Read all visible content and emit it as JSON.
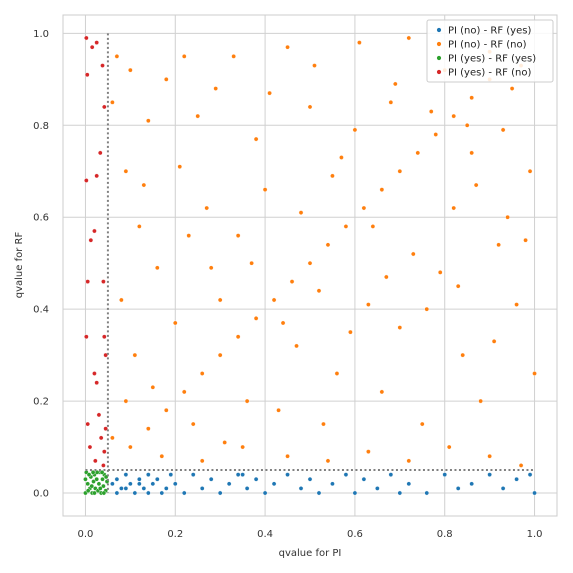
{
  "chart_data": {
    "type": "scatter",
    "title": "",
    "xlabel": "qvalue for PI",
    "ylabel": "qvalue for RF",
    "xlim": [
      -0.05,
      1.05
    ],
    "ylim": [
      -0.05,
      1.04
    ],
    "xticks": [
      "0.0",
      "0.2",
      "0.4",
      "0.6",
      "0.8",
      "1.0"
    ],
    "yticks": [
      "0.0",
      "0.2",
      "0.4",
      "0.6",
      "0.8",
      "1.0"
    ],
    "grid": true,
    "legend_position": "top-right",
    "threshold_lines": [
      {
        "orientation": "vertical",
        "value": 0.05,
        "style": "dotted",
        "color": "#808080"
      },
      {
        "orientation": "horizontal",
        "value": 0.05,
        "style": "dotted",
        "color": "#808080"
      }
    ],
    "series": [
      {
        "name": "PI (no)  - RF (yes)",
        "color": "#1f77b4",
        "points": [
          [
            0.06,
            0.02
          ],
          [
            0.07,
            0.03
          ],
          [
            0.08,
            0.01
          ],
          [
            0.09,
            0.04
          ],
          [
            0.1,
            0.02
          ],
          [
            0.11,
            0.0
          ],
          [
            0.12,
            0.03
          ],
          [
            0.13,
            0.01
          ],
          [
            0.14,
            0.04
          ],
          [
            0.15,
            0.02
          ],
          [
            0.16,
            0.03
          ],
          [
            0.17,
            0.0
          ],
          [
            0.07,
            0.0
          ],
          [
            0.09,
            0.01
          ],
          [
            0.12,
            0.02
          ],
          [
            0.14,
            0.0
          ],
          [
            0.19,
            0.04
          ],
          [
            0.2,
            0.02
          ],
          [
            0.22,
            0.0
          ],
          [
            0.24,
            0.04
          ],
          [
            0.26,
            0.01
          ],
          [
            0.28,
            0.03
          ],
          [
            0.3,
            0.0
          ],
          [
            0.32,
            0.02
          ],
          [
            0.34,
            0.04
          ],
          [
            0.36,
            0.01
          ],
          [
            0.38,
            0.03
          ],
          [
            0.4,
            0.0
          ],
          [
            0.42,
            0.02
          ],
          [
            0.45,
            0.04
          ],
          [
            0.48,
            0.01
          ],
          [
            0.5,
            0.03
          ],
          [
            0.52,
            0.0
          ],
          [
            0.55,
            0.02
          ],
          [
            0.58,
            0.04
          ],
          [
            0.6,
            0.0
          ],
          [
            0.62,
            0.03
          ],
          [
            0.65,
            0.01
          ],
          [
            0.68,
            0.04
          ],
          [
            0.7,
            0.0
          ],
          [
            0.72,
            0.02
          ],
          [
            0.76,
            0.0
          ],
          [
            0.8,
            0.04
          ],
          [
            0.83,
            0.01
          ],
          [
            0.86,
            0.02
          ],
          [
            0.9,
            0.04
          ],
          [
            0.93,
            0.01
          ],
          [
            0.96,
            0.03
          ],
          [
            0.99,
            0.04
          ],
          [
            1.0,
            0.0
          ],
          [
            0.35,
            0.04
          ],
          [
            0.18,
            0.01
          ]
        ]
      },
      {
        "name": "PI (no)  - RF (no)",
        "color": "#ff7f0e",
        "points": [
          [
            0.1,
            0.1
          ],
          [
            0.14,
            0.14
          ],
          [
            0.18,
            0.18
          ],
          [
            0.22,
            0.22
          ],
          [
            0.26,
            0.26
          ],
          [
            0.3,
            0.3
          ],
          [
            0.34,
            0.34
          ],
          [
            0.38,
            0.38
          ],
          [
            0.42,
            0.42
          ],
          [
            0.46,
            0.46
          ],
          [
            0.5,
            0.5
          ],
          [
            0.54,
            0.54
          ],
          [
            0.58,
            0.58
          ],
          [
            0.62,
            0.62
          ],
          [
            0.66,
            0.66
          ],
          [
            0.7,
            0.7
          ],
          [
            0.74,
            0.74
          ],
          [
            0.78,
            0.78
          ],
          [
            0.82,
            0.82
          ],
          [
            0.86,
            0.86
          ],
          [
            0.9,
            0.9
          ],
          [
            0.07,
            0.95
          ],
          [
            0.1,
            0.92
          ],
          [
            0.12,
            0.58
          ],
          [
            0.18,
            0.9
          ],
          [
            0.25,
            0.82
          ],
          [
            0.33,
            0.95
          ],
          [
            0.38,
            0.77
          ],
          [
            0.45,
            0.97
          ],
          [
            0.5,
            0.84
          ],
          [
            0.57,
            0.73
          ],
          [
            0.61,
            0.98
          ],
          [
            0.68,
            0.85
          ],
          [
            0.72,
            0.99
          ],
          [
            0.8,
            0.92
          ],
          [
            0.85,
            0.8
          ],
          [
            0.9,
            0.96
          ],
          [
            0.95,
            0.88
          ],
          [
            0.99,
            0.7
          ],
          [
            0.08,
            0.42
          ],
          [
            0.11,
            0.3
          ],
          [
            0.15,
            0.23
          ],
          [
            0.2,
            0.37
          ],
          [
            0.24,
            0.15
          ],
          [
            0.28,
            0.49
          ],
          [
            0.31,
            0.11
          ],
          [
            0.36,
            0.2
          ],
          [
            0.43,
            0.18
          ],
          [
            0.47,
            0.32
          ],
          [
            0.53,
            0.15
          ],
          [
            0.56,
            0.26
          ],
          [
            0.63,
            0.41
          ],
          [
            0.66,
            0.22
          ],
          [
            0.7,
            0.36
          ],
          [
            0.75,
            0.15
          ],
          [
            0.79,
            0.48
          ],
          [
            0.84,
            0.3
          ],
          [
            0.88,
            0.2
          ],
          [
            0.92,
            0.54
          ],
          [
            0.96,
            0.41
          ],
          [
            1.0,
            0.26
          ],
          [
            0.13,
            0.67
          ],
          [
            0.21,
            0.71
          ],
          [
            0.27,
            0.62
          ],
          [
            0.34,
            0.56
          ],
          [
            0.4,
            0.66
          ],
          [
            0.48,
            0.61
          ],
          [
            0.55,
            0.69
          ],
          [
            0.64,
            0.58
          ],
          [
            0.73,
            0.52
          ],
          [
            0.82,
            0.62
          ],
          [
            0.87,
            0.67
          ],
          [
            0.94,
            0.6
          ],
          [
            0.98,
            0.55
          ],
          [
            0.16,
            0.49
          ],
          [
            0.23,
            0.56
          ],
          [
            0.3,
            0.42
          ],
          [
            0.37,
            0.5
          ],
          [
            0.44,
            0.37
          ],
          [
            0.52,
            0.44
          ],
          [
            0.59,
            0.35
          ],
          [
            0.67,
            0.47
          ],
          [
            0.76,
            0.4
          ],
          [
            0.83,
            0.45
          ],
          [
            0.91,
            0.33
          ],
          [
            0.09,
            0.2
          ],
          [
            0.17,
            0.08
          ],
          [
            0.26,
            0.07
          ],
          [
            0.35,
            0.1
          ],
          [
            0.45,
            0.08
          ],
          [
            0.54,
            0.07
          ],
          [
            0.63,
            0.09
          ],
          [
            0.72,
            0.07
          ],
          [
            0.81,
            0.1
          ],
          [
            0.9,
            0.08
          ],
          [
            0.97,
            0.06
          ],
          [
            0.06,
            0.12
          ],
          [
            0.06,
            0.85
          ],
          [
            0.09,
            0.7
          ],
          [
            0.14,
            0.81
          ],
          [
            0.22,
            0.95
          ],
          [
            0.29,
            0.88
          ],
          [
            0.41,
            0.87
          ],
          [
            0.51,
            0.93
          ],
          [
            0.6,
            0.79
          ],
          [
            0.69,
            0.89
          ],
          [
            0.77,
            0.83
          ],
          [
            0.86,
            0.74
          ],
          [
            0.93,
            0.79
          ],
          [
            0.97,
            0.93
          ]
        ]
      },
      {
        "name": "PI (yes) - RF (yes)",
        "color": "#2ca02c",
        "points": [
          [
            0.0,
            0.0
          ],
          [
            0.005,
            0.02
          ],
          [
            0.01,
            0.01
          ],
          [
            0.012,
            0.035
          ],
          [
            0.015,
            0.0
          ],
          [
            0.018,
            0.025
          ],
          [
            0.02,
            0.04
          ],
          [
            0.022,
            0.01
          ],
          [
            0.025,
            0.03
          ],
          [
            0.028,
            0.005
          ],
          [
            0.03,
            0.02
          ],
          [
            0.032,
            0.045
          ],
          [
            0.035,
            0.0
          ],
          [
            0.038,
            0.03
          ],
          [
            0.04,
            0.015
          ],
          [
            0.042,
            0.04
          ],
          [
            0.045,
            0.005
          ],
          [
            0.048,
            0.025
          ],
          [
            0.0,
            0.03
          ],
          [
            0.002,
            0.045
          ],
          [
            0.008,
            0.04
          ],
          [
            0.014,
            0.015
          ],
          [
            0.02,
            0.0
          ],
          [
            0.026,
            0.045
          ],
          [
            0.033,
            0.01
          ],
          [
            0.041,
            0.0
          ],
          [
            0.046,
            0.035
          ],
          [
            0.006,
            0.005
          ],
          [
            0.017,
            0.045
          ],
          [
            0.037,
            0.045
          ]
        ]
      },
      {
        "name": "PI (yes) - RF (no)",
        "color": "#d62728",
        "points": [
          [
            0.002,
            0.99
          ],
          [
            0.004,
            0.91
          ],
          [
            0.015,
            0.97
          ],
          [
            0.025,
            0.98
          ],
          [
            0.038,
            0.93
          ],
          [
            0.042,
            0.84
          ],
          [
            0.033,
            0.74
          ],
          [
            0.002,
            0.68
          ],
          [
            0.025,
            0.69
          ],
          [
            0.02,
            0.57
          ],
          [
            0.012,
            0.55
          ],
          [
            0.005,
            0.46
          ],
          [
            0.04,
            0.46
          ],
          [
            0.002,
            0.34
          ],
          [
            0.042,
            0.34
          ],
          [
            0.045,
            0.3
          ],
          [
            0.02,
            0.26
          ],
          [
            0.025,
            0.24
          ],
          [
            0.03,
            0.17
          ],
          [
            0.005,
            0.15
          ],
          [
            0.045,
            0.14
          ],
          [
            0.035,
            0.12
          ],
          [
            0.01,
            0.1
          ],
          [
            0.042,
            0.09
          ],
          [
            0.022,
            0.07
          ],
          [
            0.04,
            0.06
          ]
        ]
      }
    ]
  }
}
